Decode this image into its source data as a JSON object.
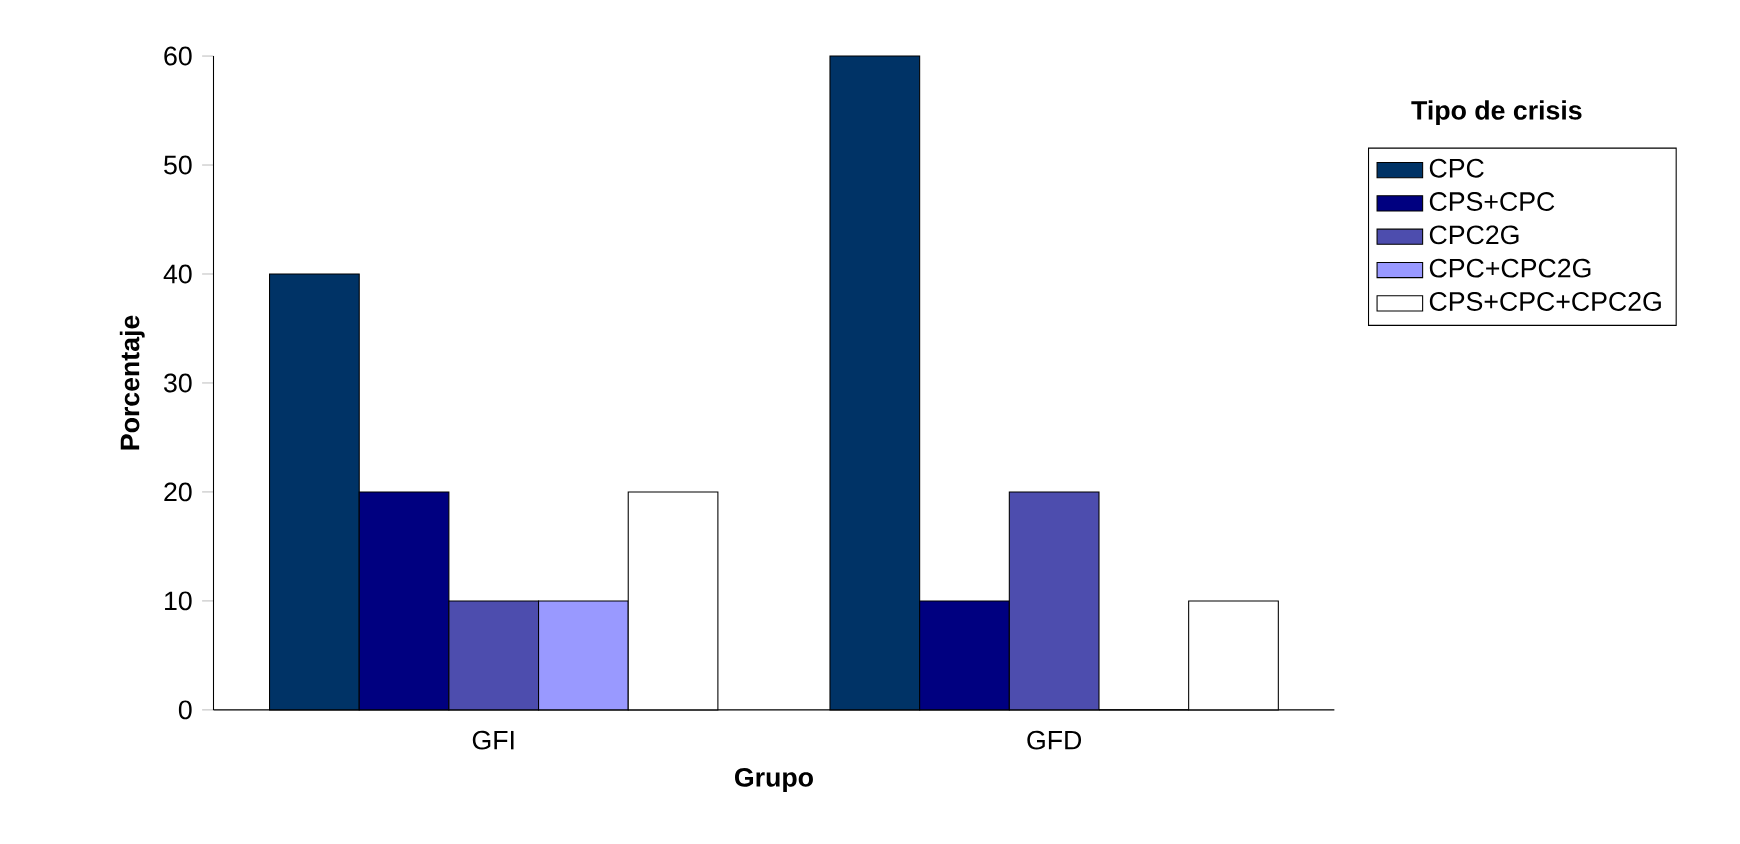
{
  "chart_data": {
    "type": "bar",
    "xlabel": "Grupo",
    "ylabel": "Porcentaje",
    "legend_title": "Tipo de crisis",
    "categories": [
      "GFI",
      "GFD"
    ],
    "series": [
      {
        "name": "CPC",
        "color": "#003366",
        "values": [
          40,
          60
        ]
      },
      {
        "name": "CPS+CPC",
        "color": "#000080",
        "values": [
          20,
          10
        ]
      },
      {
        "name": "CPC2G",
        "color": "#4d4dae",
        "values": [
          10,
          20
        ]
      },
      {
        "name": "CPC+CPC2G",
        "color": "#9999ff",
        "values": [
          10,
          0
        ]
      },
      {
        "name": "CPS+CPC+CPC2G",
        "color": "#ffffff",
        "values": [
          20,
          10
        ]
      }
    ],
    "ylim": [
      0,
      60
    ],
    "yticks": [
      0,
      10,
      20,
      30,
      40,
      50,
      60
    ],
    "grid": false,
    "legend": "top right"
  }
}
